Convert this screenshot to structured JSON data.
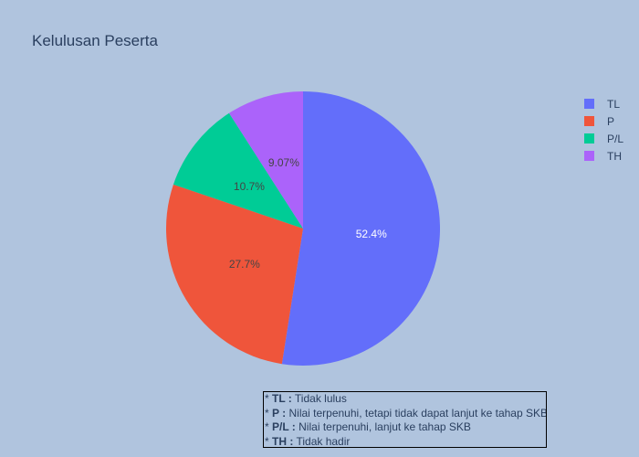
{
  "chart_data": {
    "type": "pie",
    "title": "Kelulusan Peserta",
    "categories": [
      "TL",
      "P",
      "P/L",
      "TH"
    ],
    "values": [
      52.4,
      27.7,
      10.7,
      9.07
    ],
    "labels_text": [
      "52.4%",
      "27.7%",
      "10.7%",
      "9.07%"
    ],
    "colors": [
      "#636efa",
      "#ef553b",
      "#00cc96",
      "#ab63fa"
    ],
    "direction": "clockwise",
    "start": "top",
    "legend_position": "right"
  },
  "notes": [
    {
      "key": "TL :",
      "text": "Tidak lulus"
    },
    {
      "key": "P :",
      "text": "Nilai terpenuhi, tetapi tidak dapat lanjut ke tahap SKB"
    },
    {
      "key": "P/L :",
      "text": "Nilai terpenuhi, lanjut ke tahap SKB"
    },
    {
      "key": "TH :",
      "text": " Tidak hadir"
    }
  ]
}
